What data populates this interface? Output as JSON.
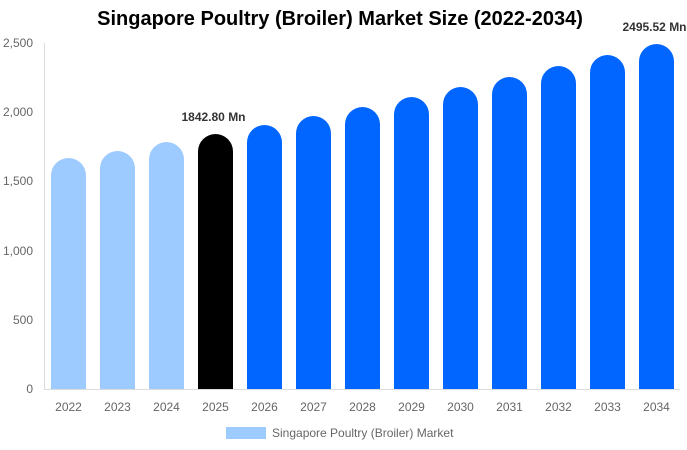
{
  "chart_data": {
    "type": "bar",
    "title": "Singapore Poultry (Broiler) Market Size (2022-2034)",
    "xlabel": "",
    "ylabel": "",
    "ylim": [
      0,
      2500
    ],
    "yticks": [
      "0",
      "500",
      "1,000",
      "1,500",
      "2,000",
      "2,500"
    ],
    "ytick_values": [
      0,
      500,
      1000,
      1500,
      2000,
      2500
    ],
    "grid": false,
    "legend_position": "bottom",
    "categories": [
      "2022",
      "2023",
      "2024",
      "2025",
      "2026",
      "2027",
      "2028",
      "2029",
      "2030",
      "2031",
      "2032",
      "2033",
      "2034"
    ],
    "series": [
      {
        "name": "Singapore Poultry (Broiler) Market",
        "values": [
          1666,
          1723,
          1782,
          1842.8,
          1906,
          1971,
          2039,
          2109,
          2181,
          2256,
          2333,
          2413,
          2495.52
        ],
        "colors": [
          "#9ecbff",
          "#9ecbff",
          "#9ecbff",
          "#000000",
          "#0066ff",
          "#0066ff",
          "#0066ff",
          "#0066ff",
          "#0066ff",
          "#0066ff",
          "#0066ff",
          "#0066ff",
          "#0066ff"
        ]
      }
    ],
    "annotations": [
      {
        "category": "2025",
        "text": "1842.80 Mn"
      },
      {
        "category": "2034",
        "text": "2495.52 Mn"
      }
    ]
  },
  "legend": {
    "label": "Singapore Poultry (Broiler) Market",
    "color": "#9ecbff"
  }
}
